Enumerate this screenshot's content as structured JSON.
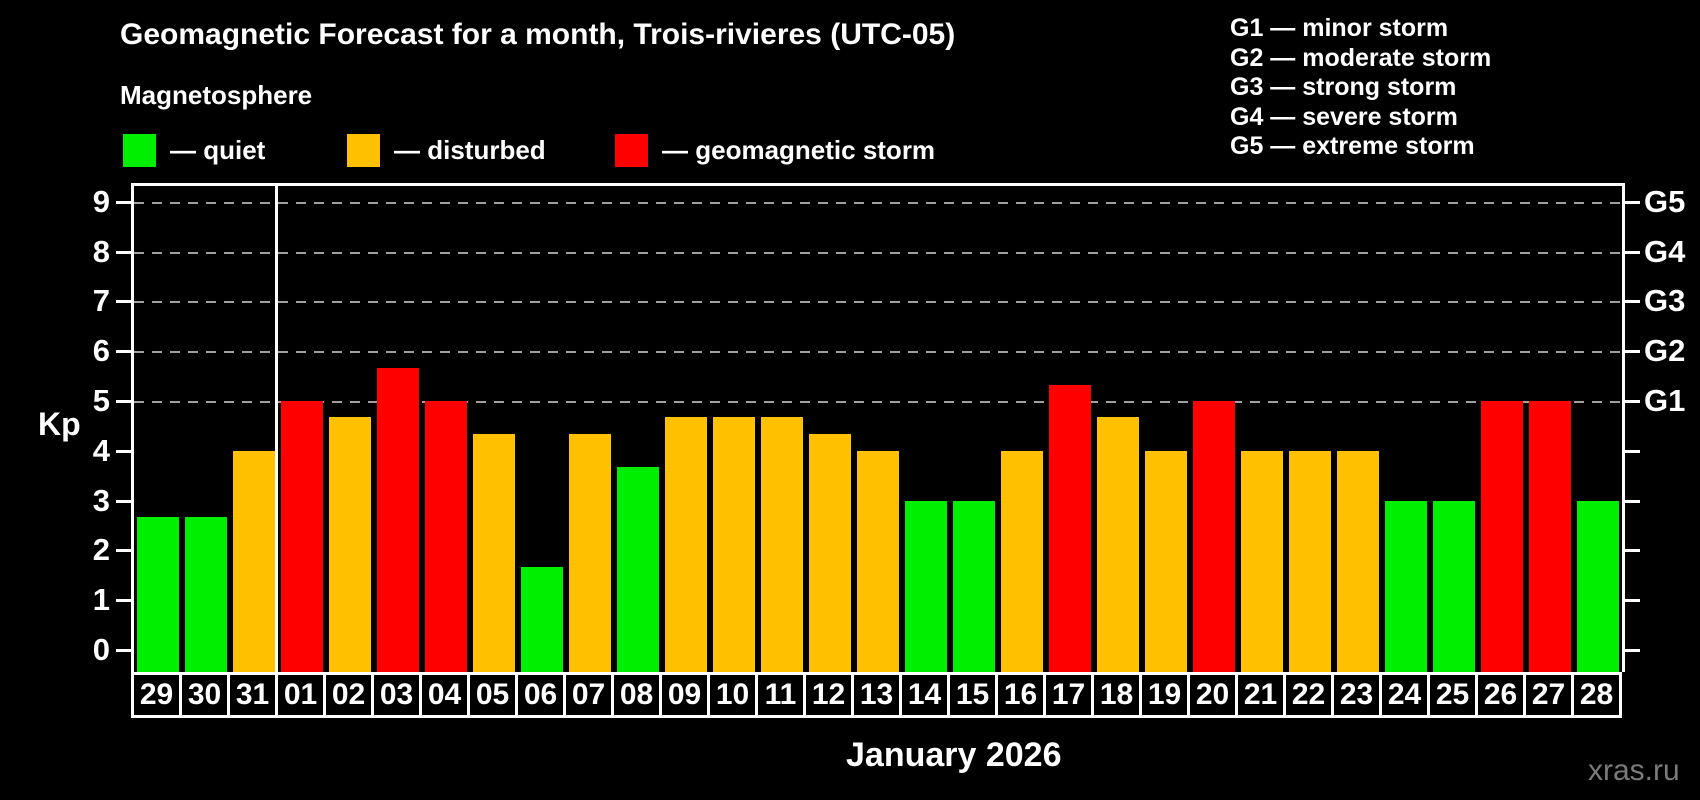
{
  "title": "Geomagnetic Forecast for a month, Trois-rivieres (UTC-05)",
  "subtitle": "Magnetosphere",
  "legend": {
    "quiet_label": "— quiet",
    "disturbed_label": "— disturbed",
    "storm_label": "— geomagnetic storm"
  },
  "g_legend": [
    "G1 — minor storm",
    "G2 — moderate storm",
    "G3 — strong storm",
    "G4 — severe storm",
    "G5 — extreme storm"
  ],
  "watermark": "xras.ru",
  "colors": {
    "quiet": "#00ee00",
    "disturbed": "#ffc000",
    "storm": "#ff0000",
    "grid": "#a0a0a0",
    "axis": "#ffffff",
    "watermark": "#7b7b7b",
    "background": "#000000"
  },
  "chart_data": {
    "type": "bar",
    "title": "Geomagnetic Forecast for a month, Trois-rivieres (UTC-05)",
    "xlabel": "January 2026",
    "ylabel": "Kp",
    "ylim": [
      0,
      9
    ],
    "y_ticks": [
      0,
      1,
      2,
      3,
      4,
      5,
      6,
      7,
      8,
      9
    ],
    "right_axis_labels": [
      {
        "label": "G1",
        "kp": 5
      },
      {
        "label": "G2",
        "kp": 6
      },
      {
        "label": "G3",
        "kp": 7
      },
      {
        "label": "G4",
        "kp": 8
      },
      {
        "label": "G5",
        "kp": 9
      }
    ],
    "gridlines_at_kp": [
      5,
      6,
      7,
      8,
      9
    ],
    "month_boundary_after_index": 2,
    "legend_position": "top-left",
    "grid": "dashed horizontal lines at G1–G5 levels only",
    "days": [
      {
        "label": "29",
        "value": 2.67,
        "state": "quiet"
      },
      {
        "label": "30",
        "value": 2.67,
        "state": "quiet"
      },
      {
        "label": "31",
        "value": 4.0,
        "state": "disturbed"
      },
      {
        "label": "01",
        "value": 5.0,
        "state": "storm"
      },
      {
        "label": "02",
        "value": 4.67,
        "state": "disturbed"
      },
      {
        "label": "03",
        "value": 5.67,
        "state": "storm"
      },
      {
        "label": "04",
        "value": 5.0,
        "state": "storm"
      },
      {
        "label": "05",
        "value": 4.33,
        "state": "disturbed"
      },
      {
        "label": "06",
        "value": 1.67,
        "state": "quiet"
      },
      {
        "label": "07",
        "value": 4.33,
        "state": "disturbed"
      },
      {
        "label": "08",
        "value": 3.67,
        "state": "quiet"
      },
      {
        "label": "09",
        "value": 4.67,
        "state": "disturbed"
      },
      {
        "label": "10",
        "value": 4.67,
        "state": "disturbed"
      },
      {
        "label": "11",
        "value": 4.67,
        "state": "disturbed"
      },
      {
        "label": "12",
        "value": 4.33,
        "state": "disturbed"
      },
      {
        "label": "13",
        "value": 4.0,
        "state": "disturbed"
      },
      {
        "label": "14",
        "value": 3.0,
        "state": "quiet"
      },
      {
        "label": "15",
        "value": 3.0,
        "state": "quiet"
      },
      {
        "label": "16",
        "value": 4.0,
        "state": "disturbed"
      },
      {
        "label": "17",
        "value": 5.33,
        "state": "storm"
      },
      {
        "label": "18",
        "value": 4.67,
        "state": "disturbed"
      },
      {
        "label": "19",
        "value": 4.0,
        "state": "disturbed"
      },
      {
        "label": "20",
        "value": 5.0,
        "state": "storm"
      },
      {
        "label": "21",
        "value": 4.0,
        "state": "disturbed"
      },
      {
        "label": "22",
        "value": 4.0,
        "state": "disturbed"
      },
      {
        "label": "23",
        "value": 4.0,
        "state": "disturbed"
      },
      {
        "label": "24",
        "value": 3.0,
        "state": "quiet"
      },
      {
        "label": "25",
        "value": 3.0,
        "state": "quiet"
      },
      {
        "label": "26",
        "value": 5.0,
        "state": "storm"
      },
      {
        "label": "27",
        "value": 5.0,
        "state": "storm"
      },
      {
        "label": "28",
        "value": 3.0,
        "state": "quiet"
      }
    ]
  }
}
